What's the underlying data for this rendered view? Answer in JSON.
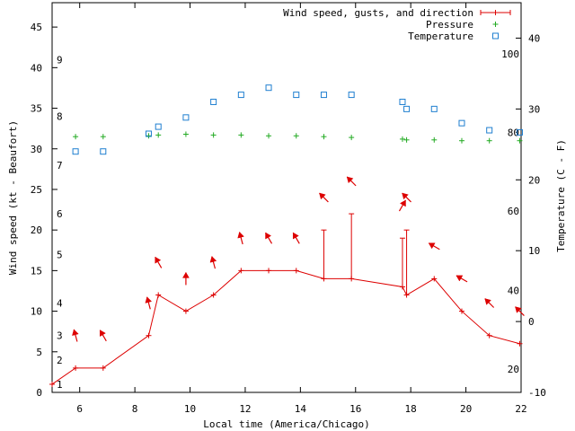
{
  "chart_data": {
    "type": "line",
    "xlabel": "Local time (America/Chicago)",
    "ylabel": "Wind speed (kt - Beaufort)",
    "y2label": "Temperature (C - F)",
    "xlim": [
      5,
      22
    ],
    "ylim": [
      0,
      48
    ],
    "y2lim": [
      -10,
      45
    ],
    "x_ticks": [
      6,
      8,
      10,
      12,
      14,
      16,
      18,
      20,
      22
    ],
    "y_ticks": [
      0,
      5,
      10,
      15,
      20,
      25,
      30,
      35,
      40,
      45
    ],
    "y2_ticks": [
      -10,
      0,
      10,
      20,
      30,
      40
    ],
    "beaufort_labels": [
      {
        "label": "1",
        "kt": 1
      },
      {
        "label": "2",
        "kt": 4
      },
      {
        "label": "3",
        "kt": 7
      },
      {
        "label": "4",
        "kt": 11
      },
      {
        "label": "5",
        "kt": 17
      },
      {
        "label": "6",
        "kt": 22
      },
      {
        "label": "7",
        "kt": 28
      },
      {
        "label": "8",
        "kt": 34
      },
      {
        "label": "9",
        "kt": 41
      }
    ],
    "fahrenheit_labels": [
      {
        "label": "20",
        "c": -6.7
      },
      {
        "label": "40",
        "c": 4.4
      },
      {
        "label": "60",
        "c": 15.6
      },
      {
        "label": "80",
        "c": 26.7
      },
      {
        "label": "100",
        "c": 37.8
      }
    ],
    "legend": [
      {
        "name": "Wind speed, gusts, and direction",
        "color": "#dd0000",
        "marker": "line-plus"
      },
      {
        "name": "Pressure",
        "color": "#22aa22",
        "marker": "plus"
      },
      {
        "name": "Temperature",
        "color": "#1f7fd0",
        "marker": "square"
      }
    ],
    "colors": {
      "wind": "#dd0000",
      "pressure": "#22aa22",
      "temperature": "#1f7fd0",
      "arrow": "#dd0000"
    },
    "wind_speed": [
      {
        "x": 5.0,
        "y": 1
      },
      {
        "x": 5.85,
        "y": 3
      },
      {
        "x": 6.85,
        "y": 3
      },
      {
        "x": 8.5,
        "y": 7
      },
      {
        "x": 8.85,
        "y": 12
      },
      {
        "x": 9.85,
        "y": 10
      },
      {
        "x": 10.85,
        "y": 12
      },
      {
        "x": 11.85,
        "y": 15
      },
      {
        "x": 12.85,
        "y": 15
      },
      {
        "x": 13.85,
        "y": 15
      },
      {
        "x": 14.85,
        "y": 14
      },
      {
        "x": 15.85,
        "y": 14
      },
      {
        "x": 17.7,
        "y": 13
      },
      {
        "x": 17.85,
        "y": 12
      },
      {
        "x": 18.85,
        "y": 14
      },
      {
        "x": 19.85,
        "y": 10
      },
      {
        "x": 20.85,
        "y": 7
      },
      {
        "x": 21.95,
        "y": 6
      }
    ],
    "gusts": [
      {
        "x": 14.85,
        "y": 20
      },
      {
        "x": 15.85,
        "y": 22
      },
      {
        "x": 17.7,
        "y": 19
      },
      {
        "x": 17.85,
        "y": 20
      }
    ],
    "wind_direction": [
      {
        "x": 5.85,
        "y": 7,
        "dir": 345
      },
      {
        "x": 6.85,
        "y": 7,
        "dir": 330
      },
      {
        "x": 8.5,
        "y": 11,
        "dir": 345
      },
      {
        "x": 8.85,
        "y": 16,
        "dir": 330
      },
      {
        "x": 9.85,
        "y": 14,
        "dir": 0
      },
      {
        "x": 10.85,
        "y": 16,
        "dir": 345
      },
      {
        "x": 11.85,
        "y": 19,
        "dir": 345
      },
      {
        "x": 12.85,
        "y": 19,
        "dir": 330
      },
      {
        "x": 13.85,
        "y": 19,
        "dir": 330
      },
      {
        "x": 14.85,
        "y": 24,
        "dir": 315
      },
      {
        "x": 15.85,
        "y": 26,
        "dir": 315
      },
      {
        "x": 17.7,
        "y": 23,
        "dir": 30
      },
      {
        "x": 17.85,
        "y": 24,
        "dir": 315
      },
      {
        "x": 18.85,
        "y": 18,
        "dir": 300
      },
      {
        "x": 19.85,
        "y": 14,
        "dir": 300
      },
      {
        "x": 20.85,
        "y": 11,
        "dir": 315
      },
      {
        "x": 21.95,
        "y": 10,
        "dir": 315
      }
    ],
    "pressure": [
      {
        "x": 5.85,
        "y": 31.5
      },
      {
        "x": 6.85,
        "y": 31.5
      },
      {
        "x": 8.5,
        "y": 31.6
      },
      {
        "x": 8.85,
        "y": 31.7
      },
      {
        "x": 9.85,
        "y": 31.8
      },
      {
        "x": 10.85,
        "y": 31.7
      },
      {
        "x": 11.85,
        "y": 31.7
      },
      {
        "x": 12.85,
        "y": 31.6
      },
      {
        "x": 13.85,
        "y": 31.6
      },
      {
        "x": 14.85,
        "y": 31.5
      },
      {
        "x": 15.85,
        "y": 31.4
      },
      {
        "x": 17.7,
        "y": 31.2
      },
      {
        "x": 17.85,
        "y": 31.1
      },
      {
        "x": 18.85,
        "y": 31.1
      },
      {
        "x": 19.85,
        "y": 31.0
      },
      {
        "x": 20.85,
        "y": 31.0
      },
      {
        "x": 21.95,
        "y": 31.0
      }
    ],
    "temperature": [
      {
        "x": 5.85,
        "y": 24.0
      },
      {
        "x": 6.85,
        "y": 24.0
      },
      {
        "x": 8.5,
        "y": 26.5
      },
      {
        "x": 8.85,
        "y": 27.5
      },
      {
        "x": 9.85,
        "y": 28.8
      },
      {
        "x": 10.85,
        "y": 31.0
      },
      {
        "x": 11.85,
        "y": 32.0
      },
      {
        "x": 12.85,
        "y": 33.0
      },
      {
        "x": 13.85,
        "y": 32.0
      },
      {
        "x": 14.85,
        "y": 32.0
      },
      {
        "x": 15.85,
        "y": 32.0
      },
      {
        "x": 17.7,
        "y": 31.0
      },
      {
        "x": 17.85,
        "y": 30.0
      },
      {
        "x": 18.85,
        "y": 30.0
      },
      {
        "x": 19.85,
        "y": 28.0
      },
      {
        "x": 20.85,
        "y": 27.0
      },
      {
        "x": 21.95,
        "y": 26.7
      }
    ]
  }
}
